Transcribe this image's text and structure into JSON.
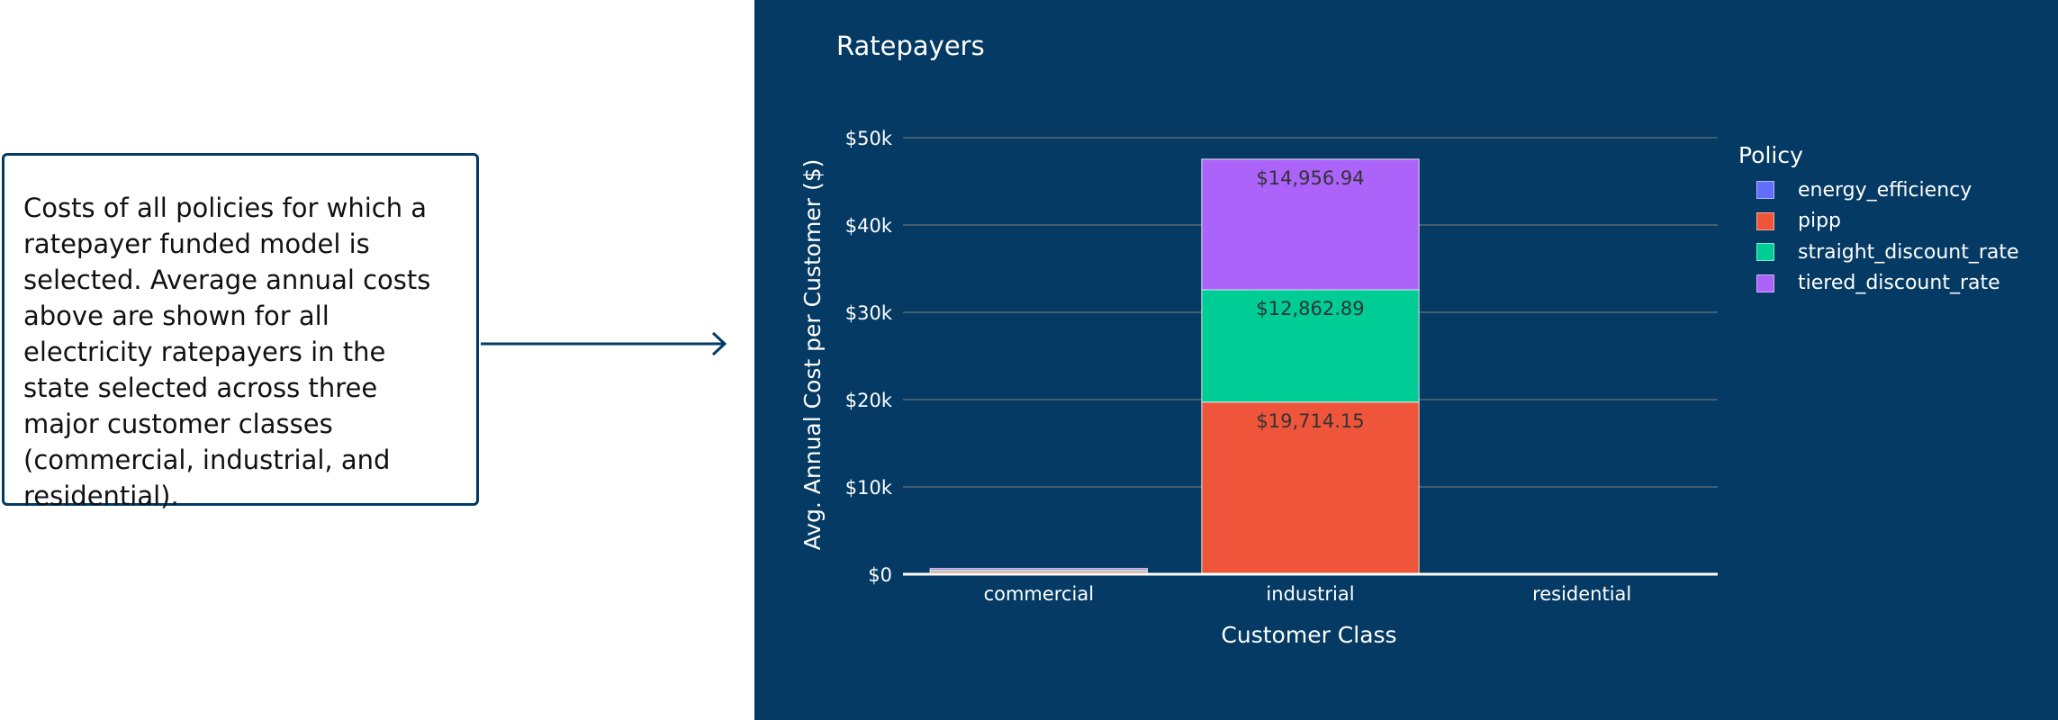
{
  "callout": {
    "text": "Costs of all policies for which a ratepayer funded model is selected. Average annual costs above are shown for all electricity ratepayers in the state selected across three major customer classes (commercial, industrial, and residential)."
  },
  "colors": {
    "panel_bg": "#043a63",
    "energy_efficiency": "#636efa",
    "pipp": "#ef553b",
    "straight_discount_rate": "#00cc96",
    "tiered_discount_rate": "#ab63fa"
  },
  "legend": {
    "title": "Policy",
    "items": [
      {
        "label": "energy_efficiency",
        "color": "#636efa"
      },
      {
        "label": "pipp",
        "color": "#ef553b"
      },
      {
        "label": "straight_discount_rate",
        "color": "#00cc96"
      },
      {
        "label": "tiered_discount_rate",
        "color": "#ab63fa"
      }
    ]
  },
  "chart_data": {
    "type": "bar",
    "stacked": true,
    "title": "Ratepayers",
    "xlabel": "Customer Class",
    "ylabel": "Avg. Annual Cost per Customer ($)",
    "categories": [
      "commercial",
      "industrial",
      "residential"
    ],
    "ylim": [
      0,
      50000
    ],
    "yticks": [
      0,
      10000,
      20000,
      30000,
      40000,
      50000
    ],
    "ytick_labels": [
      "$0",
      "$10k",
      "$20k",
      "$30k",
      "$40k",
      "$50k"
    ],
    "grid": true,
    "legend_position": "right",
    "series": [
      {
        "name": "energy_efficiency",
        "values": [
          0,
          0,
          0
        ],
        "labels": [
          "",
          "",
          ""
        ]
      },
      {
        "name": "pipp",
        "values": [
          300,
          19714.15,
          0
        ],
        "labels": [
          "",
          "$19,714.15",
          ""
        ]
      },
      {
        "name": "straight_discount_rate",
        "values": [
          150,
          12862.89,
          0
        ],
        "labels": [
          "",
          "$12,862.89",
          ""
        ]
      },
      {
        "name": "tiered_discount_rate",
        "values": [
          200,
          14956.94,
          0
        ],
        "labels": [
          "",
          "$14,956.94",
          ""
        ]
      }
    ]
  }
}
